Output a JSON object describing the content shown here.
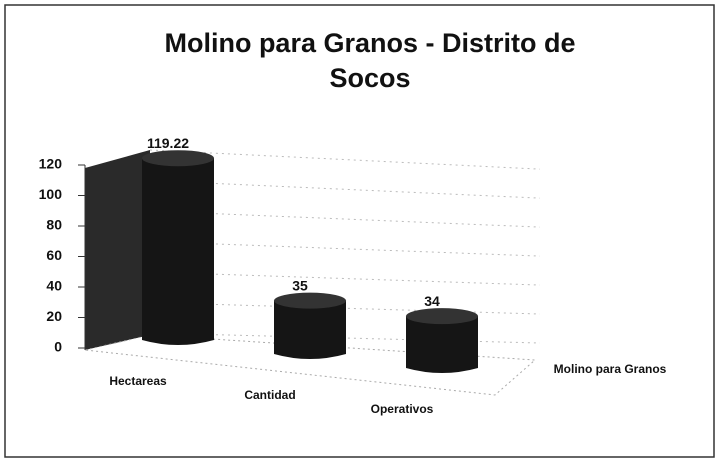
{
  "chart_data": {
    "type": "bar3d",
    "title": "Molino para Granos - Distrito de",
    "title_line2": "Socos",
    "categories": [
      "Hectareas",
      "Cantidad",
      "Operativos"
    ],
    "series": [
      {
        "name": "Molino para Granos",
        "color": "#151515",
        "values": [
          119.22,
          35,
          34
        ]
      }
    ],
    "ylim": [
      0,
      120
    ],
    "yticks": [
      0,
      20,
      40,
      60,
      80,
      100,
      120
    ],
    "grid": true
  }
}
